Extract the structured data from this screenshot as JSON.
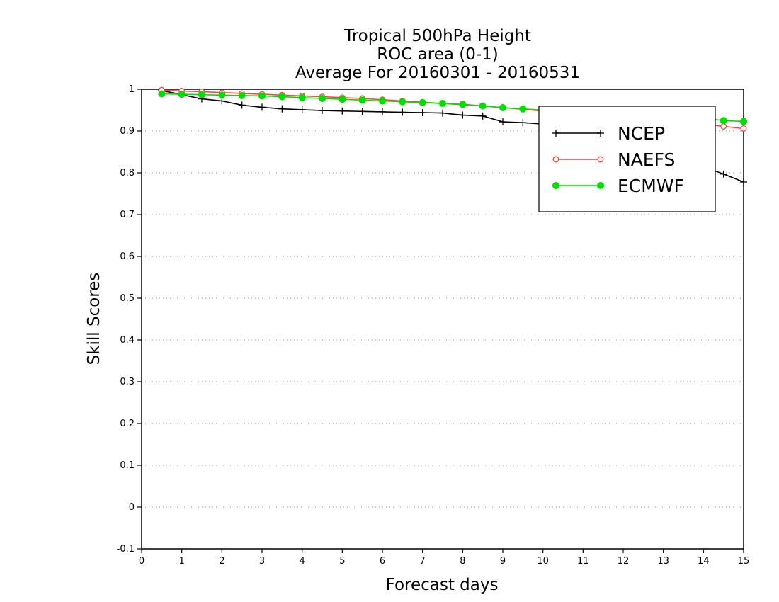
{
  "chart_data": {
    "type": "line",
    "title_lines": [
      "Tropical 500hPa Height",
      "ROC area (0-1)",
      "Average For 20160301 - 20160531"
    ],
    "xlabel": "Forecast days",
    "ylabel": "Skill Scores",
    "xlim": [
      0,
      15
    ],
    "ylim": [
      -0.1,
      1
    ],
    "x_ticks": [
      "0",
      "1",
      "2",
      "3",
      "4",
      "5",
      "6",
      "7",
      "8",
      "9",
      "10",
      "11",
      "12",
      "13",
      "14",
      "15"
    ],
    "y_ticks": [
      "-0.1",
      "0",
      "0.1",
      "0.2",
      "0.3",
      "0.4",
      "0.5",
      "0.6",
      "0.7",
      "0.8",
      "0.9",
      "1"
    ],
    "grid": "horizontal dotted",
    "legend_position": "top-right",
    "x": [
      0.5,
      1,
      1.5,
      2,
      2.5,
      3,
      3.5,
      4,
      4.5,
      5,
      5.5,
      6,
      6.5,
      7,
      7.5,
      8,
      8.5,
      9,
      9.5,
      10,
      10.5,
      11,
      11.5,
      12,
      12.5,
      13,
      13.5,
      14,
      14.5,
      15
    ],
    "series": [
      {
        "name": "NCEP",
        "color": "#000000",
        "marker": "plus",
        "values": [
          0.997,
          0.987,
          0.977,
          0.972,
          0.962,
          0.957,
          0.953,
          0.951,
          0.949,
          0.948,
          0.947,
          0.946,
          0.945,
          0.944,
          0.943,
          0.938,
          0.936,
          0.922,
          0.92,
          0.917,
          0.913,
          0.905,
          0.895,
          0.882,
          0.868,
          0.851,
          0.835,
          0.815,
          0.797,
          0.778
        ]
      },
      {
        "name": "NAEFS",
        "color": "#ff4040",
        "marker": "open-circle",
        "values": [
          0.998,
          0.996,
          0.994,
          0.992,
          0.99,
          0.988,
          0.986,
          0.984,
          0.982,
          0.98,
          0.978,
          0.975,
          0.972,
          0.969,
          0.966,
          0.963,
          0.96,
          0.956,
          0.952,
          0.948,
          0.944,
          0.94,
          0.937,
          0.933,
          0.929,
          0.925,
          0.921,
          0.917,
          0.911,
          0.906
        ]
      },
      {
        "name": "ECMWF",
        "color": "#00dd00",
        "marker": "filled-circle",
        "values": [
          0.989,
          0.988,
          0.987,
          0.986,
          0.985,
          0.984,
          0.982,
          0.98,
          0.978,
          0.976,
          0.974,
          0.972,
          0.97,
          0.968,
          0.966,
          0.964,
          0.96,
          0.956,
          0.953,
          0.95,
          0.947,
          0.944,
          0.941,
          0.939,
          0.937,
          0.935,
          0.933,
          0.931,
          0.925,
          0.923
        ]
      }
    ]
  }
}
